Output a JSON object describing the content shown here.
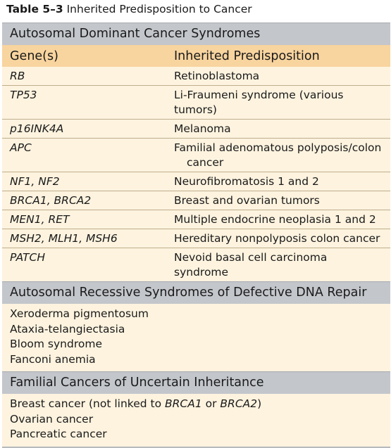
{
  "caption": {
    "number": "Table 5–3",
    "title": "Inherited Predisposition to Cancer"
  },
  "sections": {
    "dominant": {
      "title": "Autosomal Dominant Cancer Syndromes",
      "header": {
        "col1": "Gene(s)",
        "col2": "Inherited Predisposition"
      },
      "rows": [
        {
          "gene": "RB",
          "predisposition": "Retinoblastoma"
        },
        {
          "gene": "TP53",
          "predisposition": "Li-Fraumeni syndrome (various tumors)"
        },
        {
          "gene": "p16INK4A",
          "predisposition": "Melanoma"
        },
        {
          "gene": "APC",
          "predisposition": "Familial adenomatous polyposis/colon",
          "predisposition_cont": "cancer"
        },
        {
          "gene": "NF1, NF2",
          "predisposition": "Neurofibromatosis 1 and 2"
        },
        {
          "gene": "BRCA1, BRCA2",
          "predisposition": "Breast and ovarian tumors"
        },
        {
          "gene": "MEN1, RET",
          "predisposition": "Multiple endocrine neoplasia 1 and 2"
        },
        {
          "gene": "MSH2, MLH1, MSH6",
          "predisposition": "Hereditary nonpolyposis colon cancer"
        },
        {
          "gene": "PATCH",
          "predisposition": "Nevoid basal cell carcinoma syndrome"
        }
      ]
    },
    "recessive": {
      "title": "Autosomal Recessive Syndromes of Defective DNA Repair",
      "items": [
        "Xeroderma pigmentosum",
        "Ataxia-telangiectasia",
        "Bloom syndrome",
        "Fanconi anemia"
      ]
    },
    "familial": {
      "title": "Familial Cancers of Uncertain Inheritance",
      "breast": {
        "prefix": "Breast cancer (not linked to ",
        "gene1": "BRCA1",
        "mid": " or ",
        "gene2": "BRCA2",
        "suffix": ")"
      },
      "items": [
        "Ovarian cancer",
        "Pancreatic cancer"
      ]
    }
  }
}
